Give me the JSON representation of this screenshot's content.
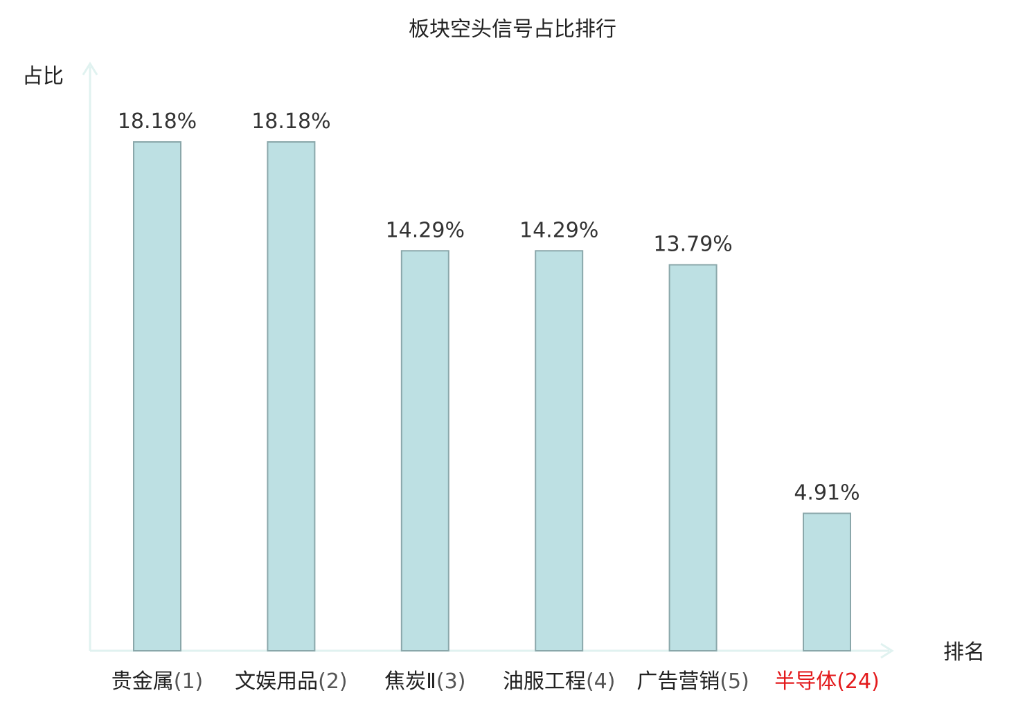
{
  "chart_data": {
    "type": "bar",
    "title": "板块空头信号占比排行",
    "ylabel": "占比",
    "xlabel": "排名",
    "categories": [
      {
        "name": "贵金属",
        "rank": "(1)",
        "highlight": false
      },
      {
        "name": "文娱用品",
        "rank": "(2)",
        "highlight": false
      },
      {
        "name": "焦炭Ⅱ",
        "rank": "(3)",
        "highlight": false
      },
      {
        "name": "油服工程",
        "rank": "(4)",
        "highlight": false
      },
      {
        "name": "广告营销",
        "rank": "(5)",
        "highlight": false
      },
      {
        "name": "半导体",
        "rank": "(24)",
        "highlight": true
      }
    ],
    "values": [
      18.18,
      18.18,
      14.29,
      14.29,
      13.79,
      4.91
    ],
    "value_labels": [
      "18.18%",
      "18.18%",
      "14.29%",
      "14.29%",
      "13.79%",
      "4.91%"
    ],
    "ylim": [
      0,
      20
    ],
    "grid": false,
    "legend": "none",
    "colors": {
      "bar_fill": "#bde0e3",
      "bar_stroke": "#8aa7aa",
      "axis": "#e0f2f0",
      "text": "#222222",
      "rank_text": "#555555",
      "highlight": "#e31a1c"
    }
  }
}
